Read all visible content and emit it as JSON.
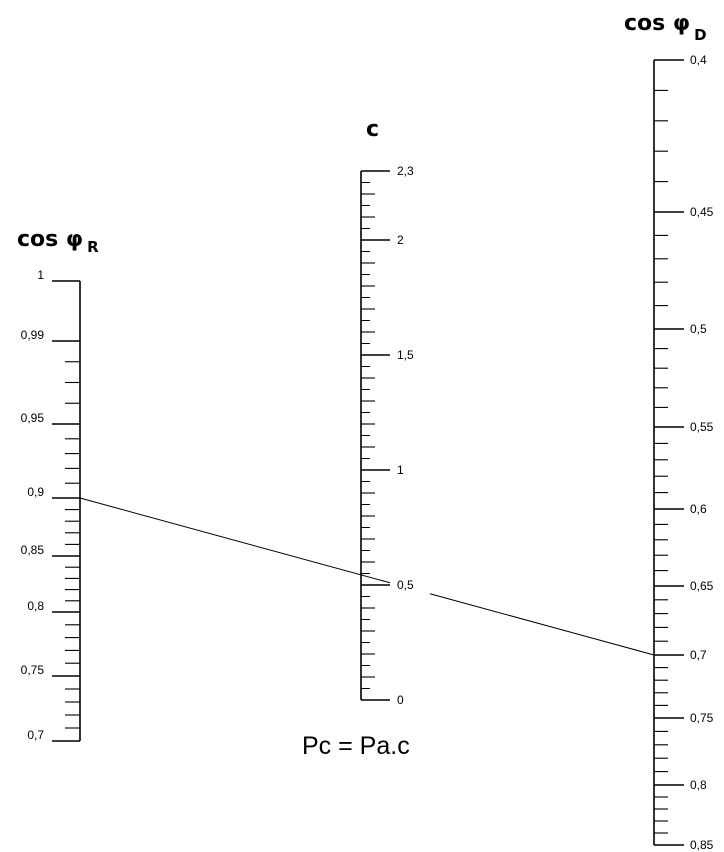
{
  "scale_R": {
    "title": "cos φ",
    "subscript": "R",
    "labels": [
      {
        "value": 1,
        "text": "1"
      },
      {
        "value": 0.99,
        "text": "0,99"
      },
      {
        "value": 0.95,
        "text": "0,95"
      },
      {
        "value": 0.9,
        "text": "0,9"
      },
      {
        "value": 0.85,
        "text": "0,85"
      },
      {
        "value": 0.8,
        "text": "0,8"
      },
      {
        "value": 0.75,
        "text": "0,75"
      },
      {
        "value": 0.7,
        "text": "0,7"
      }
    ]
  },
  "scale_C": {
    "title": "c",
    "labels": [
      {
        "value": 2.3,
        "text": "2,3"
      },
      {
        "value": 2,
        "text": "2"
      },
      {
        "value": 1.5,
        "text": "1,5"
      },
      {
        "value": 1,
        "text": "1"
      },
      {
        "value": 0.5,
        "text": "0,5"
      },
      {
        "value": 0,
        "text": "0"
      }
    ]
  },
  "scale_D": {
    "title": "cos φ",
    "subscript": "D",
    "labels": [
      {
        "value": 0.4,
        "text": "0,4"
      },
      {
        "value": 0.45,
        "text": "0,45"
      },
      {
        "value": 0.5,
        "text": "0,5"
      },
      {
        "value": 0.55,
        "text": "0,55"
      },
      {
        "value": 0.6,
        "text": "0,6"
      },
      {
        "value": 0.65,
        "text": "0,65"
      },
      {
        "value": 0.7,
        "text": "0,7"
      },
      {
        "value": 0.75,
        "text": "0,75"
      },
      {
        "value": 0.8,
        "text": "0,8"
      },
      {
        "value": 0.85,
        "text": "0,85"
      }
    ]
  },
  "example": {
    "cos_phi_R": 0.9,
    "c": 0.5,
    "cos_phi_D": 0.7
  },
  "formula": "Pc  =  Pa.c"
}
